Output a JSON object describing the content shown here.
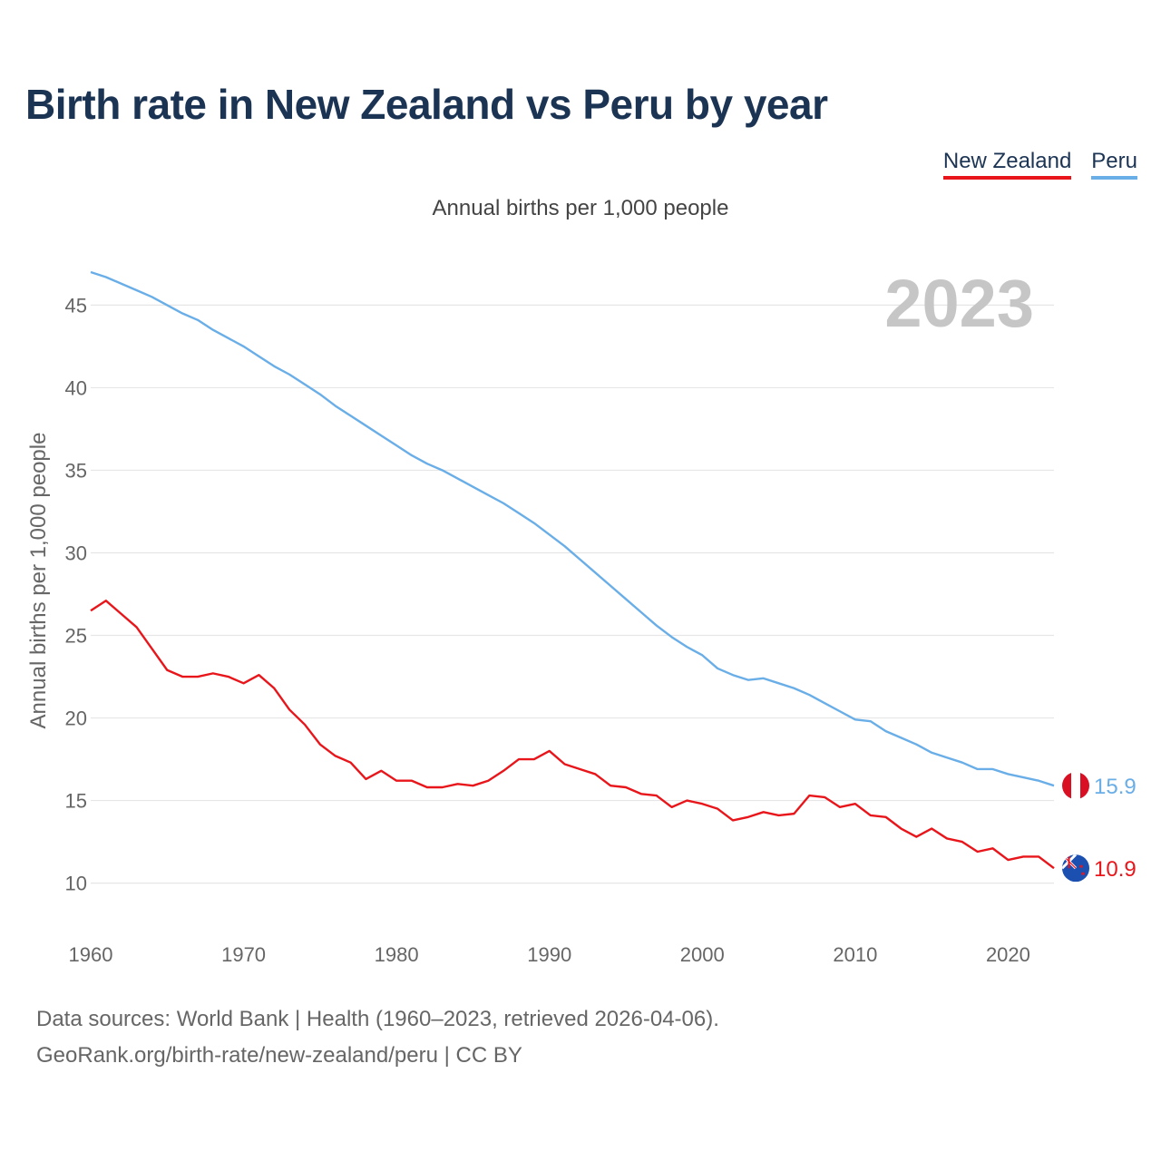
{
  "title": "Birth rate in New Zealand vs Peru by year",
  "legend": {
    "items": [
      {
        "label": "New Zealand",
        "color": "#e8161b"
      },
      {
        "label": "Peru",
        "color": "#6aaee8"
      }
    ]
  },
  "subtitle": "Annual births per 1,000 people",
  "year_label": "2023",
  "source": {
    "line1": "Data sources: World Bank | Health (1960–2023, retrieved 2026-04-06).",
    "line2": "GeoRank.org/birth-rate/new-zealand/peru | CC BY"
  },
  "chart_data": {
    "type": "line",
    "title": "Birth rate in New Zealand vs Peru by year",
    "xlabel": "",
    "ylabel": "Annual births per 1,000 people",
    "xlim": [
      1960,
      2023
    ],
    "ylim": [
      8,
      47
    ],
    "yticks": [
      10,
      15,
      20,
      25,
      30,
      35,
      40,
      45
    ],
    "xticks": [
      1960,
      1970,
      1980,
      1990,
      2000,
      2010,
      2020
    ],
    "grid": true,
    "legend_position": "top-right",
    "x": [
      1960,
      1961,
      1962,
      1963,
      1964,
      1965,
      1966,
      1967,
      1968,
      1969,
      1970,
      1971,
      1972,
      1973,
      1974,
      1975,
      1976,
      1977,
      1978,
      1979,
      1980,
      1981,
      1982,
      1983,
      1984,
      1985,
      1986,
      1987,
      1988,
      1989,
      1990,
      1991,
      1992,
      1993,
      1994,
      1995,
      1996,
      1997,
      1998,
      1999,
      2000,
      2001,
      2002,
      2003,
      2004,
      2005,
      2006,
      2007,
      2008,
      2009,
      2010,
      2011,
      2012,
      2013,
      2014,
      2015,
      2016,
      2017,
      2018,
      2019,
      2020,
      2021,
      2022,
      2023
    ],
    "series": [
      {
        "name": "New Zealand",
        "color": "#e8161b",
        "end_label": "10.9",
        "flag": "nz",
        "values": [
          26.5,
          27.1,
          26.3,
          25.5,
          24.2,
          22.9,
          22.5,
          22.5,
          22.7,
          22.5,
          22.1,
          22.6,
          21.8,
          20.5,
          19.6,
          18.4,
          17.7,
          17.3,
          16.3,
          16.8,
          16.2,
          16.2,
          15.8,
          15.8,
          16.0,
          15.9,
          16.2,
          16.8,
          17.5,
          17.5,
          18.0,
          17.2,
          16.9,
          16.6,
          15.9,
          15.8,
          15.4,
          15.3,
          14.6,
          15.0,
          14.8,
          14.5,
          13.8,
          14.0,
          14.3,
          14.1,
          14.2,
          15.3,
          15.2,
          14.6,
          14.8,
          14.1,
          14.0,
          13.3,
          12.8,
          13.3,
          12.7,
          12.5,
          11.9,
          12.1,
          11.4,
          11.6,
          11.6,
          10.9
        ]
      },
      {
        "name": "Peru",
        "color": "#6aaee8",
        "end_label": "15.9",
        "flag": "pe",
        "values": [
          47.0,
          46.7,
          46.3,
          45.9,
          45.5,
          45.0,
          44.5,
          44.1,
          43.5,
          43.0,
          42.5,
          41.9,
          41.3,
          40.8,
          40.2,
          39.6,
          38.9,
          38.3,
          37.7,
          37.1,
          36.5,
          35.9,
          35.4,
          35.0,
          34.5,
          34.0,
          33.5,
          33.0,
          32.4,
          31.8,
          31.1,
          30.4,
          29.6,
          28.8,
          28.0,
          27.2,
          26.4,
          25.6,
          24.9,
          24.3,
          23.8,
          23.0,
          22.6,
          22.3,
          22.4,
          22.1,
          21.8,
          21.4,
          20.9,
          20.4,
          19.9,
          19.8,
          19.2,
          18.8,
          18.4,
          17.9,
          17.6,
          17.3,
          16.9,
          16.9,
          16.6,
          16.4,
          16.2,
          15.9
        ]
      }
    ]
  }
}
